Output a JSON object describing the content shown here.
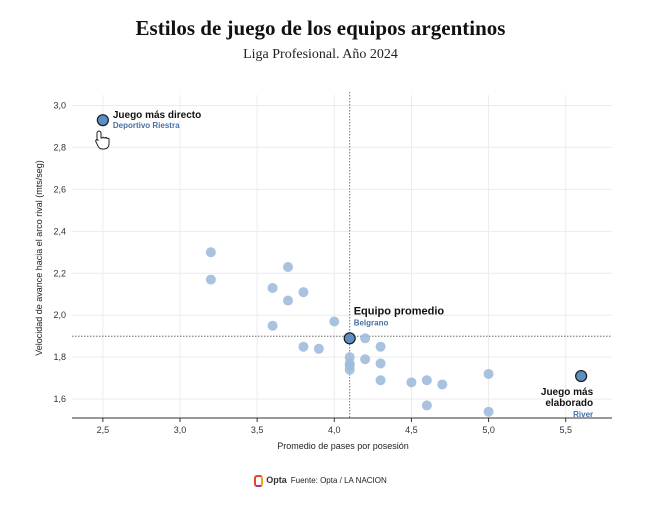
{
  "title": "Estilos de juego de los equipos argentinos",
  "subtitle": "Liga Profesional. Año 2024",
  "footer": {
    "brand": "Opta",
    "source": "Fuente: Opta / LA NACION"
  },
  "colors": {
    "point": "#9fbbdc",
    "highlight": "#5b8ec4",
    "highlight_stroke": "#1a1a1a",
    "team_label": "#4a6fa5"
  },
  "chart_data": {
    "type": "scatter",
    "xlabel": "Promedio de pases por posesión",
    "ylabel": "Velocidad de avance hacia el arco rival (mts/seg)",
    "xlim": [
      2.3,
      5.8
    ],
    "ylim": [
      1.51,
      3.05
    ],
    "x_ticks": [
      {
        "v": 2.5,
        "label": "2,5"
      },
      {
        "v": 3.0,
        "label": "3,0"
      },
      {
        "v": 3.5,
        "label": "3,5"
      },
      {
        "v": 4.0,
        "label": "4,0"
      },
      {
        "v": 4.5,
        "label": "4,5"
      },
      {
        "v": 5.0,
        "label": "5,0"
      },
      {
        "v": 5.5,
        "label": "5,5"
      }
    ],
    "y_ticks": [
      {
        "v": 1.6,
        "label": "1,6"
      },
      {
        "v": 1.8,
        "label": "1,8"
      },
      {
        "v": 2.0,
        "label": "2,0"
      },
      {
        "v": 2.2,
        "label": "2,2"
      },
      {
        "v": 2.4,
        "label": "2,4"
      },
      {
        "v": 2.6,
        "label": "2,6"
      },
      {
        "v": 2.8,
        "label": "2,8"
      },
      {
        "v": 3.0,
        "label": "3,0"
      }
    ],
    "grid": true,
    "average_lines": {
      "x": 4.1,
      "y": 1.9
    },
    "points": [
      {
        "x": 3.2,
        "y": 2.3
      },
      {
        "x": 3.2,
        "y": 2.17
      },
      {
        "x": 3.6,
        "y": 2.13
      },
      {
        "x": 3.7,
        "y": 2.23
      },
      {
        "x": 3.7,
        "y": 2.07
      },
      {
        "x": 3.8,
        "y": 2.11
      },
      {
        "x": 3.6,
        "y": 1.95
      },
      {
        "x": 4.0,
        "y": 1.97
      },
      {
        "x": 3.8,
        "y": 1.85
      },
      {
        "x": 3.9,
        "y": 1.84
      },
      {
        "x": 4.1,
        "y": 1.8
      },
      {
        "x": 4.1,
        "y": 1.77
      },
      {
        "x": 4.1,
        "y": 1.76
      },
      {
        "x": 4.1,
        "y": 1.74
      },
      {
        "x": 4.2,
        "y": 1.89
      },
      {
        "x": 4.2,
        "y": 1.79
      },
      {
        "x": 4.3,
        "y": 1.85
      },
      {
        "x": 4.3,
        "y": 1.77
      },
      {
        "x": 4.3,
        "y": 1.69
      },
      {
        "x": 4.5,
        "y": 1.68
      },
      {
        "x": 4.6,
        "y": 1.69
      },
      {
        "x": 4.6,
        "y": 1.57
      },
      {
        "x": 4.7,
        "y": 1.67
      },
      {
        "x": 5.0,
        "y": 1.72
      },
      {
        "x": 5.0,
        "y": 1.54
      }
    ],
    "highlighted": [
      {
        "x": 2.5,
        "y": 2.93,
        "label": "Juego más directo",
        "team": "Deportivo Riestra"
      },
      {
        "x": 4.1,
        "y": 1.89,
        "label": "Equipo promedio",
        "team": "Belgrano"
      },
      {
        "x": 5.6,
        "y": 1.71,
        "label_lines": [
          "Juego más",
          "elaborado"
        ],
        "team": "River"
      }
    ]
  }
}
